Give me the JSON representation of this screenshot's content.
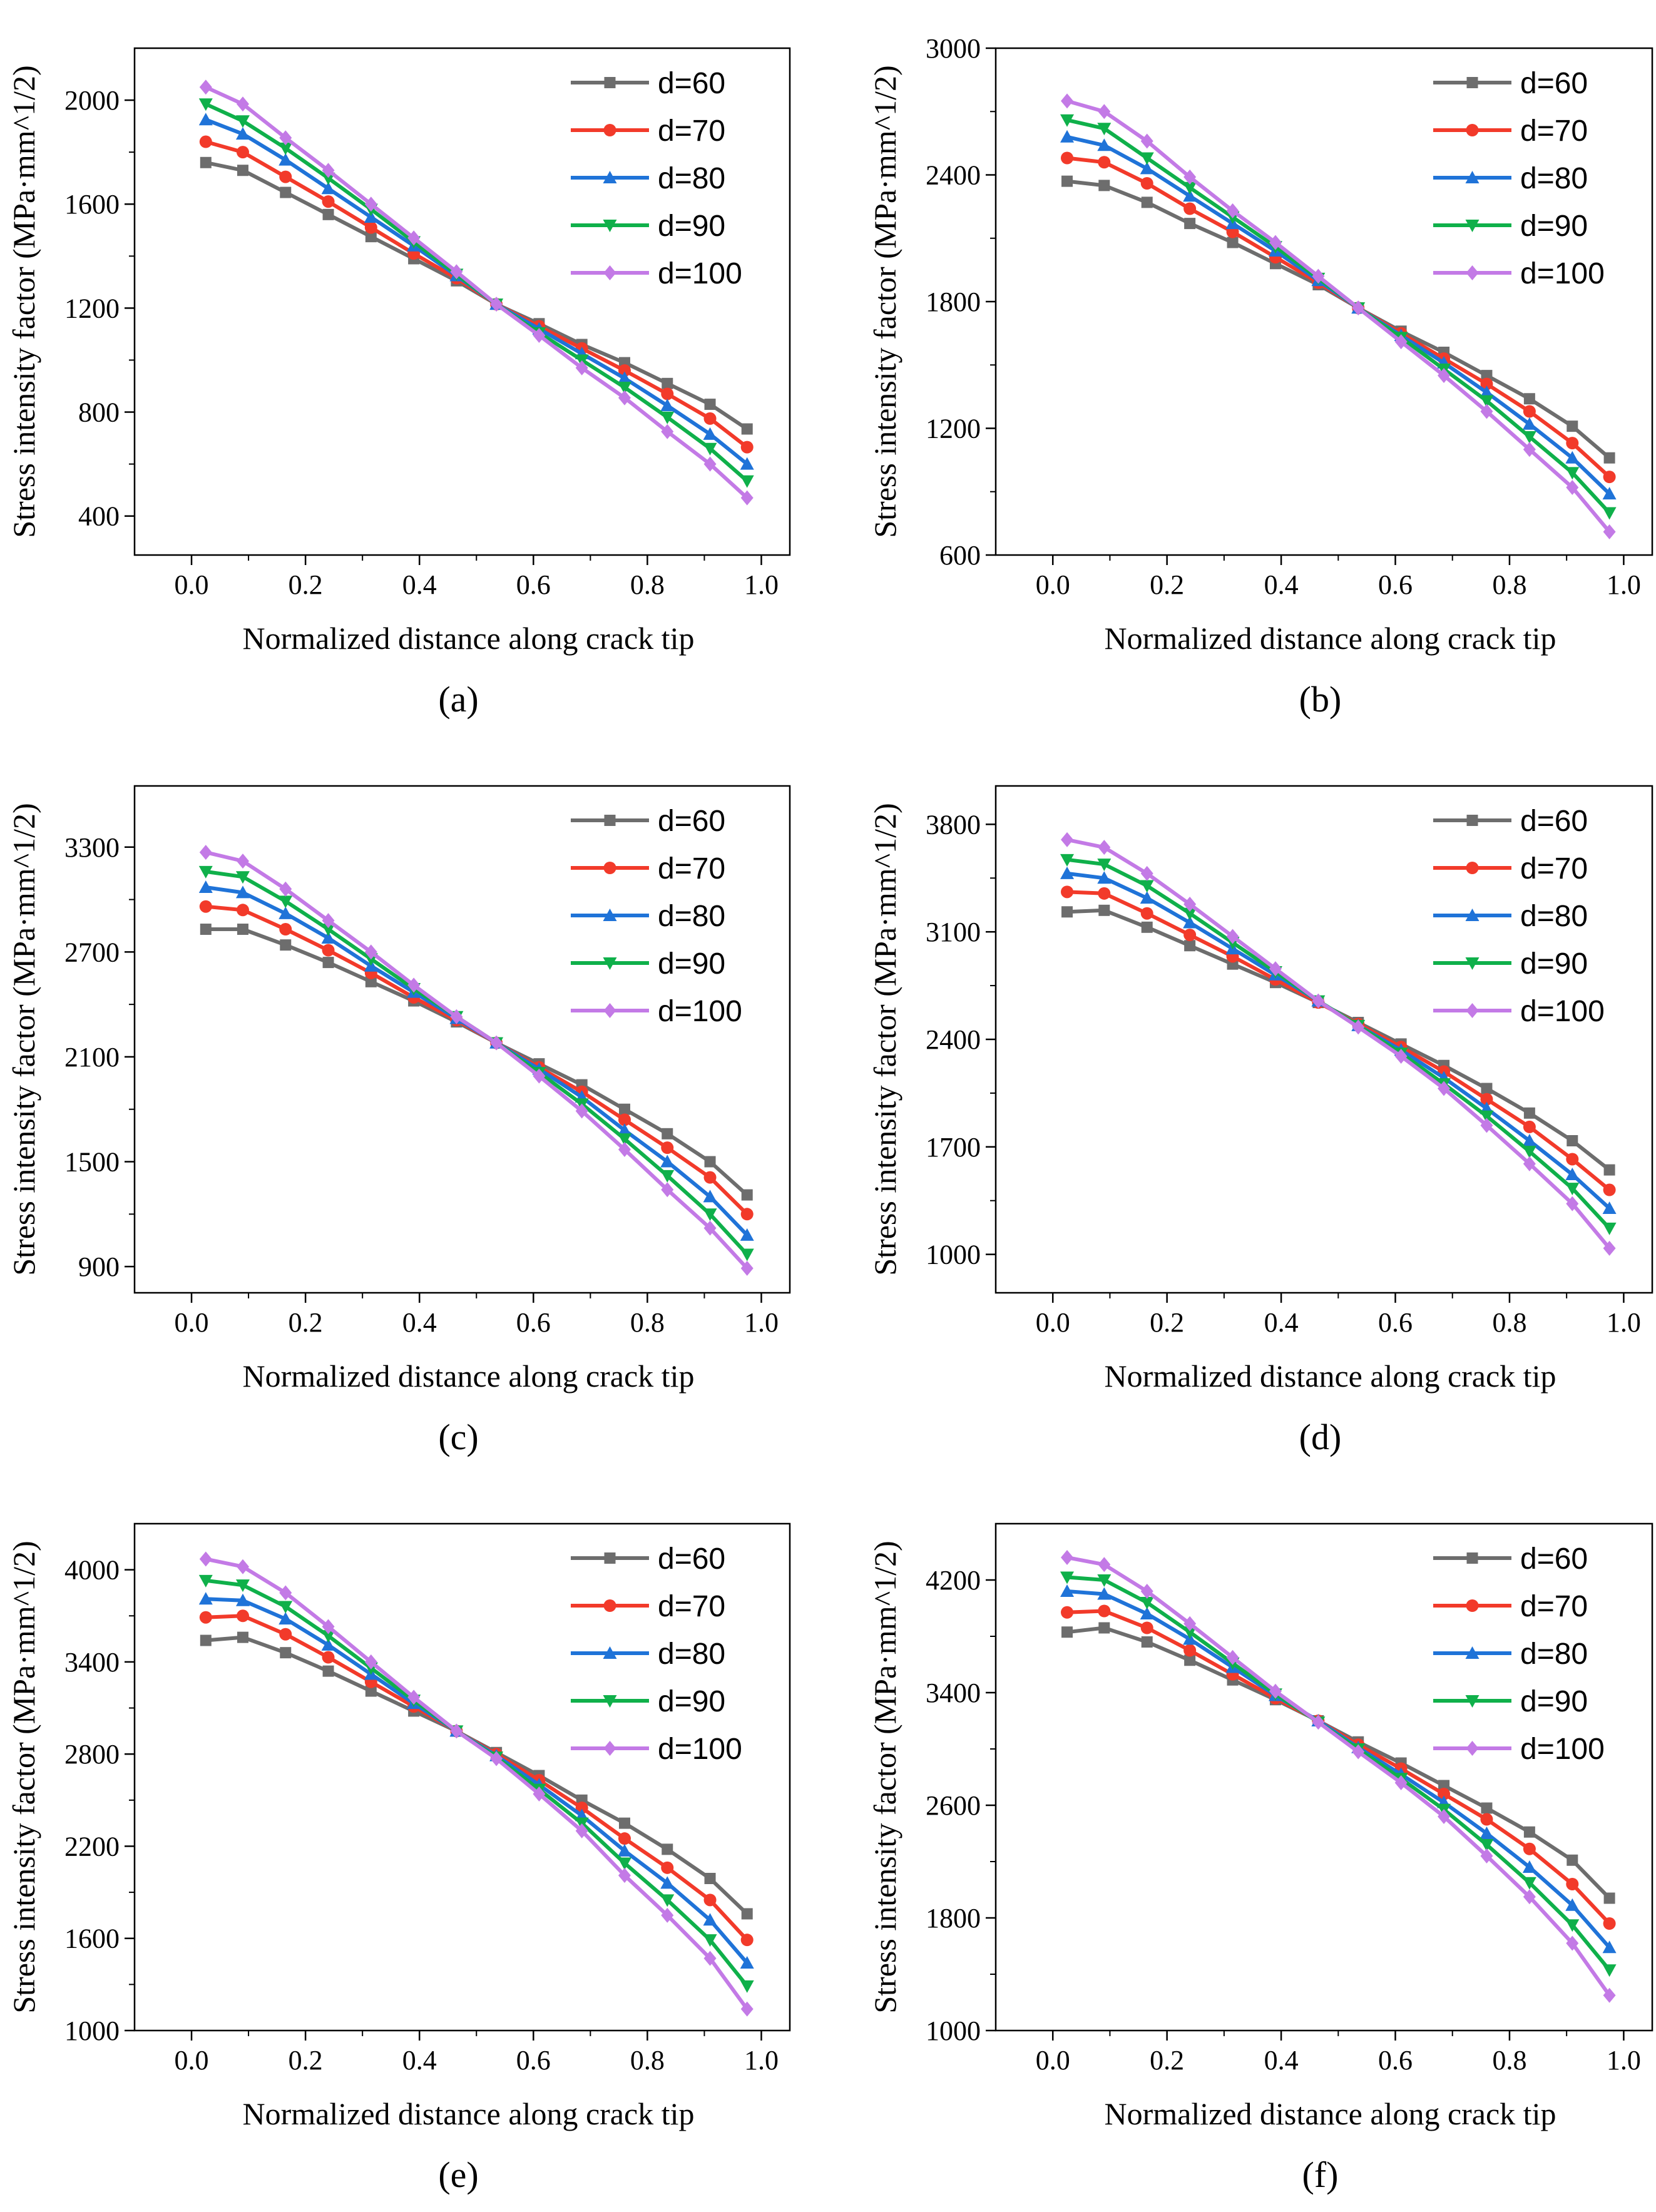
{
  "chart_data": [
    {
      "type": "line",
      "panel_label": "(a)",
      "xlabel": "Normalized distance along crack tip",
      "ylabel": "Stress intensity factor (MPa·mm^1/2)",
      "xlim": [
        -0.1,
        1.05
      ],
      "ylim": [
        250,
        2200
      ],
      "xticks": [
        0.0,
        0.2,
        0.4,
        0.6,
        0.8,
        1.0
      ],
      "yticks": [
        400,
        800,
        1200,
        1600,
        2000
      ],
      "x": [
        0.025,
        0.09,
        0.165,
        0.24,
        0.315,
        0.39,
        0.465,
        0.535,
        0.61,
        0.685,
        0.76,
        0.835,
        0.91,
        0.975
      ],
      "series": [
        {
          "name": "d=60",
          "values": [
            1760,
            1730,
            1645,
            1560,
            1475,
            1390,
            1305,
            1215,
            1140,
            1060,
            990,
            910,
            830,
            735
          ]
        },
        {
          "name": "d=70",
          "values": [
            1840,
            1800,
            1705,
            1610,
            1510,
            1410,
            1315,
            1215,
            1130,
            1045,
            960,
            870,
            775,
            665
          ]
        },
        {
          "name": "d=80",
          "values": [
            1925,
            1870,
            1770,
            1660,
            1550,
            1440,
            1325,
            1215,
            1120,
            1025,
            930,
            825,
            715,
            600
          ]
        },
        {
          "name": "d=90",
          "values": [
            1985,
            1920,
            1815,
            1700,
            1580,
            1455,
            1330,
            1215,
            1105,
            1000,
            895,
            780,
            660,
            535
          ]
        },
        {
          "name": "d=100",
          "values": [
            2050,
            1985,
            1855,
            1730,
            1600,
            1470,
            1340,
            1215,
            1095,
            970,
            855,
            725,
            600,
            470
          ]
        }
      ]
    },
    {
      "type": "line",
      "panel_label": "(b)",
      "xlabel": "Normalized distance along crack tip",
      "ylabel": "Stress intensity factor (MPa·mm^1/2)",
      "xlim": [
        -0.1,
        1.05
      ],
      "ylim": [
        600,
        3000
      ],
      "xticks": [
        0.0,
        0.2,
        0.4,
        0.6,
        0.8,
        1.0
      ],
      "yticks": [
        600,
        1200,
        1800,
        2400,
        3000
      ],
      "x": [
        0.025,
        0.09,
        0.165,
        0.24,
        0.315,
        0.39,
        0.465,
        0.535,
        0.61,
        0.685,
        0.76,
        0.835,
        0.91,
        0.975
      ],
      "series": [
        {
          "name": "d=60",
          "values": [
            2370,
            2350,
            2270,
            2170,
            2080,
            1980,
            1880,
            1770,
            1660,
            1560,
            1450,
            1340,
            1210,
            1060
          ]
        },
        {
          "name": "d=70",
          "values": [
            2480,
            2460,
            2360,
            2240,
            2130,
            2010,
            1890,
            1770,
            1650,
            1530,
            1410,
            1280,
            1130,
            970
          ]
        },
        {
          "name": "d=80",
          "values": [
            2580,
            2540,
            2430,
            2300,
            2170,
            2040,
            1900,
            1770,
            1640,
            1510,
            1370,
            1220,
            1060,
            890
          ]
        },
        {
          "name": "d=90",
          "values": [
            2660,
            2620,
            2480,
            2340,
            2200,
            2060,
            1910,
            1770,
            1630,
            1480,
            1330,
            1160,
            990,
            800
          ]
        },
        {
          "name": "d=100",
          "values": [
            2750,
            2700,
            2560,
            2390,
            2230,
            2080,
            1920,
            1770,
            1610,
            1450,
            1280,
            1100,
            920,
            710
          ]
        }
      ]
    },
    {
      "type": "line",
      "panel_label": "(c)",
      "xlabel": "Normalized distance along crack tip",
      "ylabel": "Stress intensity factor (MPa·mm^1/2)",
      "xlim": [
        -0.1,
        1.05
      ],
      "ylim": [
        750,
        3650
      ],
      "xticks": [
        0.0,
        0.2,
        0.4,
        0.6,
        0.8,
        1.0
      ],
      "yticks": [
        900,
        1500,
        2100,
        2700,
        3300
      ],
      "x": [
        0.025,
        0.09,
        0.165,
        0.24,
        0.315,
        0.39,
        0.465,
        0.535,
        0.61,
        0.685,
        0.76,
        0.835,
        0.91,
        0.975
      ],
      "series": [
        {
          "name": "d=60",
          "values": [
            2830,
            2830,
            2740,
            2640,
            2530,
            2420,
            2300,
            2180,
            2060,
            1940,
            1800,
            1660,
            1500,
            1310
          ]
        },
        {
          "name": "d=70",
          "values": [
            2960,
            2940,
            2830,
            2710,
            2580,
            2440,
            2310,
            2180,
            2040,
            1900,
            1740,
            1580,
            1410,
            1200
          ]
        },
        {
          "name": "d=80",
          "values": [
            3070,
            3040,
            2920,
            2780,
            2620,
            2470,
            2320,
            2180,
            2030,
            1870,
            1680,
            1500,
            1300,
            1080
          ]
        },
        {
          "name": "d=90",
          "values": [
            3160,
            3130,
            2990,
            2830,
            2660,
            2490,
            2330,
            2180,
            2010,
            1830,
            1630,
            1420,
            1200,
            970
          ]
        },
        {
          "name": "d=100",
          "values": [
            3270,
            3220,
            3060,
            2880,
            2700,
            2510,
            2330,
            2180,
            1990,
            1790,
            1570,
            1340,
            1120,
            890
          ]
        }
      ]
    },
    {
      "type": "line",
      "panel_label": "(d)",
      "xlabel": "Normalized distance along crack tip",
      "ylabel": "Stress intensity factor (MPa·mm^1/2)",
      "xlim": [
        -0.1,
        1.05
      ],
      "ylim": [
        750,
        4050
      ],
      "xticks": [
        0.0,
        0.2,
        0.4,
        0.6,
        0.8,
        1.0
      ],
      "yticks": [
        1000,
        1700,
        2400,
        3100,
        3800
      ],
      "x": [
        0.025,
        0.09,
        0.165,
        0.24,
        0.315,
        0.39,
        0.465,
        0.535,
        0.61,
        0.685,
        0.76,
        0.835,
        0.91,
        0.975
      ],
      "series": [
        {
          "name": "d=60",
          "values": [
            3230,
            3240,
            3130,
            3010,
            2890,
            2770,
            2640,
            2510,
            2370,
            2230,
            2080,
            1920,
            1740,
            1550
          ]
        },
        {
          "name": "d=70",
          "values": [
            3360,
            3350,
            3220,
            3080,
            2940,
            2790,
            2640,
            2500,
            2350,
            2190,
            2010,
            1830,
            1620,
            1420
          ]
        },
        {
          "name": "d=80",
          "values": [
            3480,
            3450,
            3320,
            3160,
            2990,
            2820,
            2650,
            2490,
            2330,
            2150,
            1950,
            1740,
            1520,
            1300
          ]
        },
        {
          "name": "d=90",
          "values": [
            3570,
            3540,
            3400,
            3220,
            3030,
            2840,
            2650,
            2490,
            2310,
            2110,
            1900,
            1670,
            1430,
            1170
          ]
        },
        {
          "name": "d=100",
          "values": [
            3700,
            3650,
            3480,
            3280,
            3070,
            2860,
            2650,
            2480,
            2290,
            2080,
            1840,
            1590,
            1330,
            1040
          ]
        }
      ]
    },
    {
      "type": "line",
      "panel_label": "(e)",
      "xlabel": "Normalized distance along crack tip",
      "ylabel": "Stress intensity factor (MPa·mm^1/2)",
      "xlim": [
        -0.1,
        1.05
      ],
      "ylim": [
        1000,
        4300
      ],
      "xticks": [
        0.0,
        0.2,
        0.4,
        0.6,
        0.8,
        1.0
      ],
      "yticks": [
        1000,
        1600,
        2200,
        2800,
        3400,
        4000
      ],
      "x": [
        0.025,
        0.09,
        0.165,
        0.24,
        0.315,
        0.39,
        0.465,
        0.535,
        0.61,
        0.685,
        0.76,
        0.835,
        0.91,
        0.975
      ],
      "series": [
        {
          "name": "d=60",
          "values": [
            3540,
            3560,
            3460,
            3340,
            3210,
            3080,
            2950,
            2810,
            2660,
            2500,
            2350,
            2180,
            1990,
            1760
          ]
        },
        {
          "name": "d=70",
          "values": [
            3690,
            3700,
            3580,
            3430,
            3270,
            3110,
            2950,
            2800,
            2630,
            2450,
            2250,
            2060,
            1850,
            1590
          ]
        },
        {
          "name": "d=80",
          "values": [
            3810,
            3800,
            3680,
            3510,
            3320,
            3130,
            2950,
            2790,
            2600,
            2400,
            2170,
            1960,
            1720,
            1440
          ]
        },
        {
          "name": "d=90",
          "values": [
            3930,
            3900,
            3760,
            3570,
            3360,
            3150,
            2950,
            2780,
            2570,
            2350,
            2090,
            1850,
            1590,
            1290
          ]
        },
        {
          "name": "d=100",
          "values": [
            4070,
            4020,
            3850,
            3630,
            3400,
            3170,
            2950,
            2770,
            2540,
            2300,
            2010,
            1750,
            1470,
            1140
          ]
        }
      ]
    },
    {
      "type": "line",
      "panel_label": "(f)",
      "xlabel": "Normalized distance along crack tip",
      "ylabel": "Stress intensity factor (MPa·mm^1/2)",
      "xlim": [
        -0.1,
        1.05
      ],
      "ylim": [
        1000,
        4600
      ],
      "xticks": [
        0.0,
        0.2,
        0.4,
        0.6,
        0.8,
        1.0
      ],
      "yticks": [
        1000,
        1800,
        2600,
        3400,
        4200
      ],
      "x": [
        0.025,
        0.09,
        0.165,
        0.24,
        0.315,
        0.39,
        0.465,
        0.535,
        0.61,
        0.685,
        0.76,
        0.835,
        0.91,
        0.975
      ],
      "series": [
        {
          "name": "d=60",
          "values": [
            3830,
            3860,
            3760,
            3630,
            3490,
            3350,
            3200,
            3050,
            2900,
            2740,
            2580,
            2410,
            2210,
            1940
          ]
        },
        {
          "name": "d=70",
          "values": [
            3970,
            3980,
            3860,
            3700,
            3530,
            3360,
            3200,
            3030,
            2860,
            2680,
            2500,
            2290,
            2040,
            1760
          ]
        },
        {
          "name": "d=80",
          "values": [
            4120,
            4100,
            3960,
            3780,
            3580,
            3380,
            3200,
            3010,
            2820,
            2620,
            2400,
            2160,
            1890,
            1590
          ]
        },
        {
          "name": "d=90",
          "values": [
            4220,
            4200,
            4040,
            3830,
            3610,
            3390,
            3190,
            3000,
            2790,
            2570,
            2320,
            2050,
            1750,
            1430
          ]
        },
        {
          "name": "d=100",
          "values": [
            4360,
            4310,
            4120,
            3890,
            3650,
            3410,
            3190,
            2980,
            2760,
            2520,
            2240,
            1950,
            1620,
            1250
          ]
        }
      ]
    }
  ],
  "series_styles": [
    {
      "color": "#6d6d6d",
      "marker": "square"
    },
    {
      "color": "#f23a2a",
      "marker": "circle"
    },
    {
      "color": "#1f73d8",
      "marker": "triangle-up"
    },
    {
      "color": "#0fb04a",
      "marker": "triangle-down"
    },
    {
      "color": "#c37ae6",
      "marker": "diamond"
    }
  ]
}
